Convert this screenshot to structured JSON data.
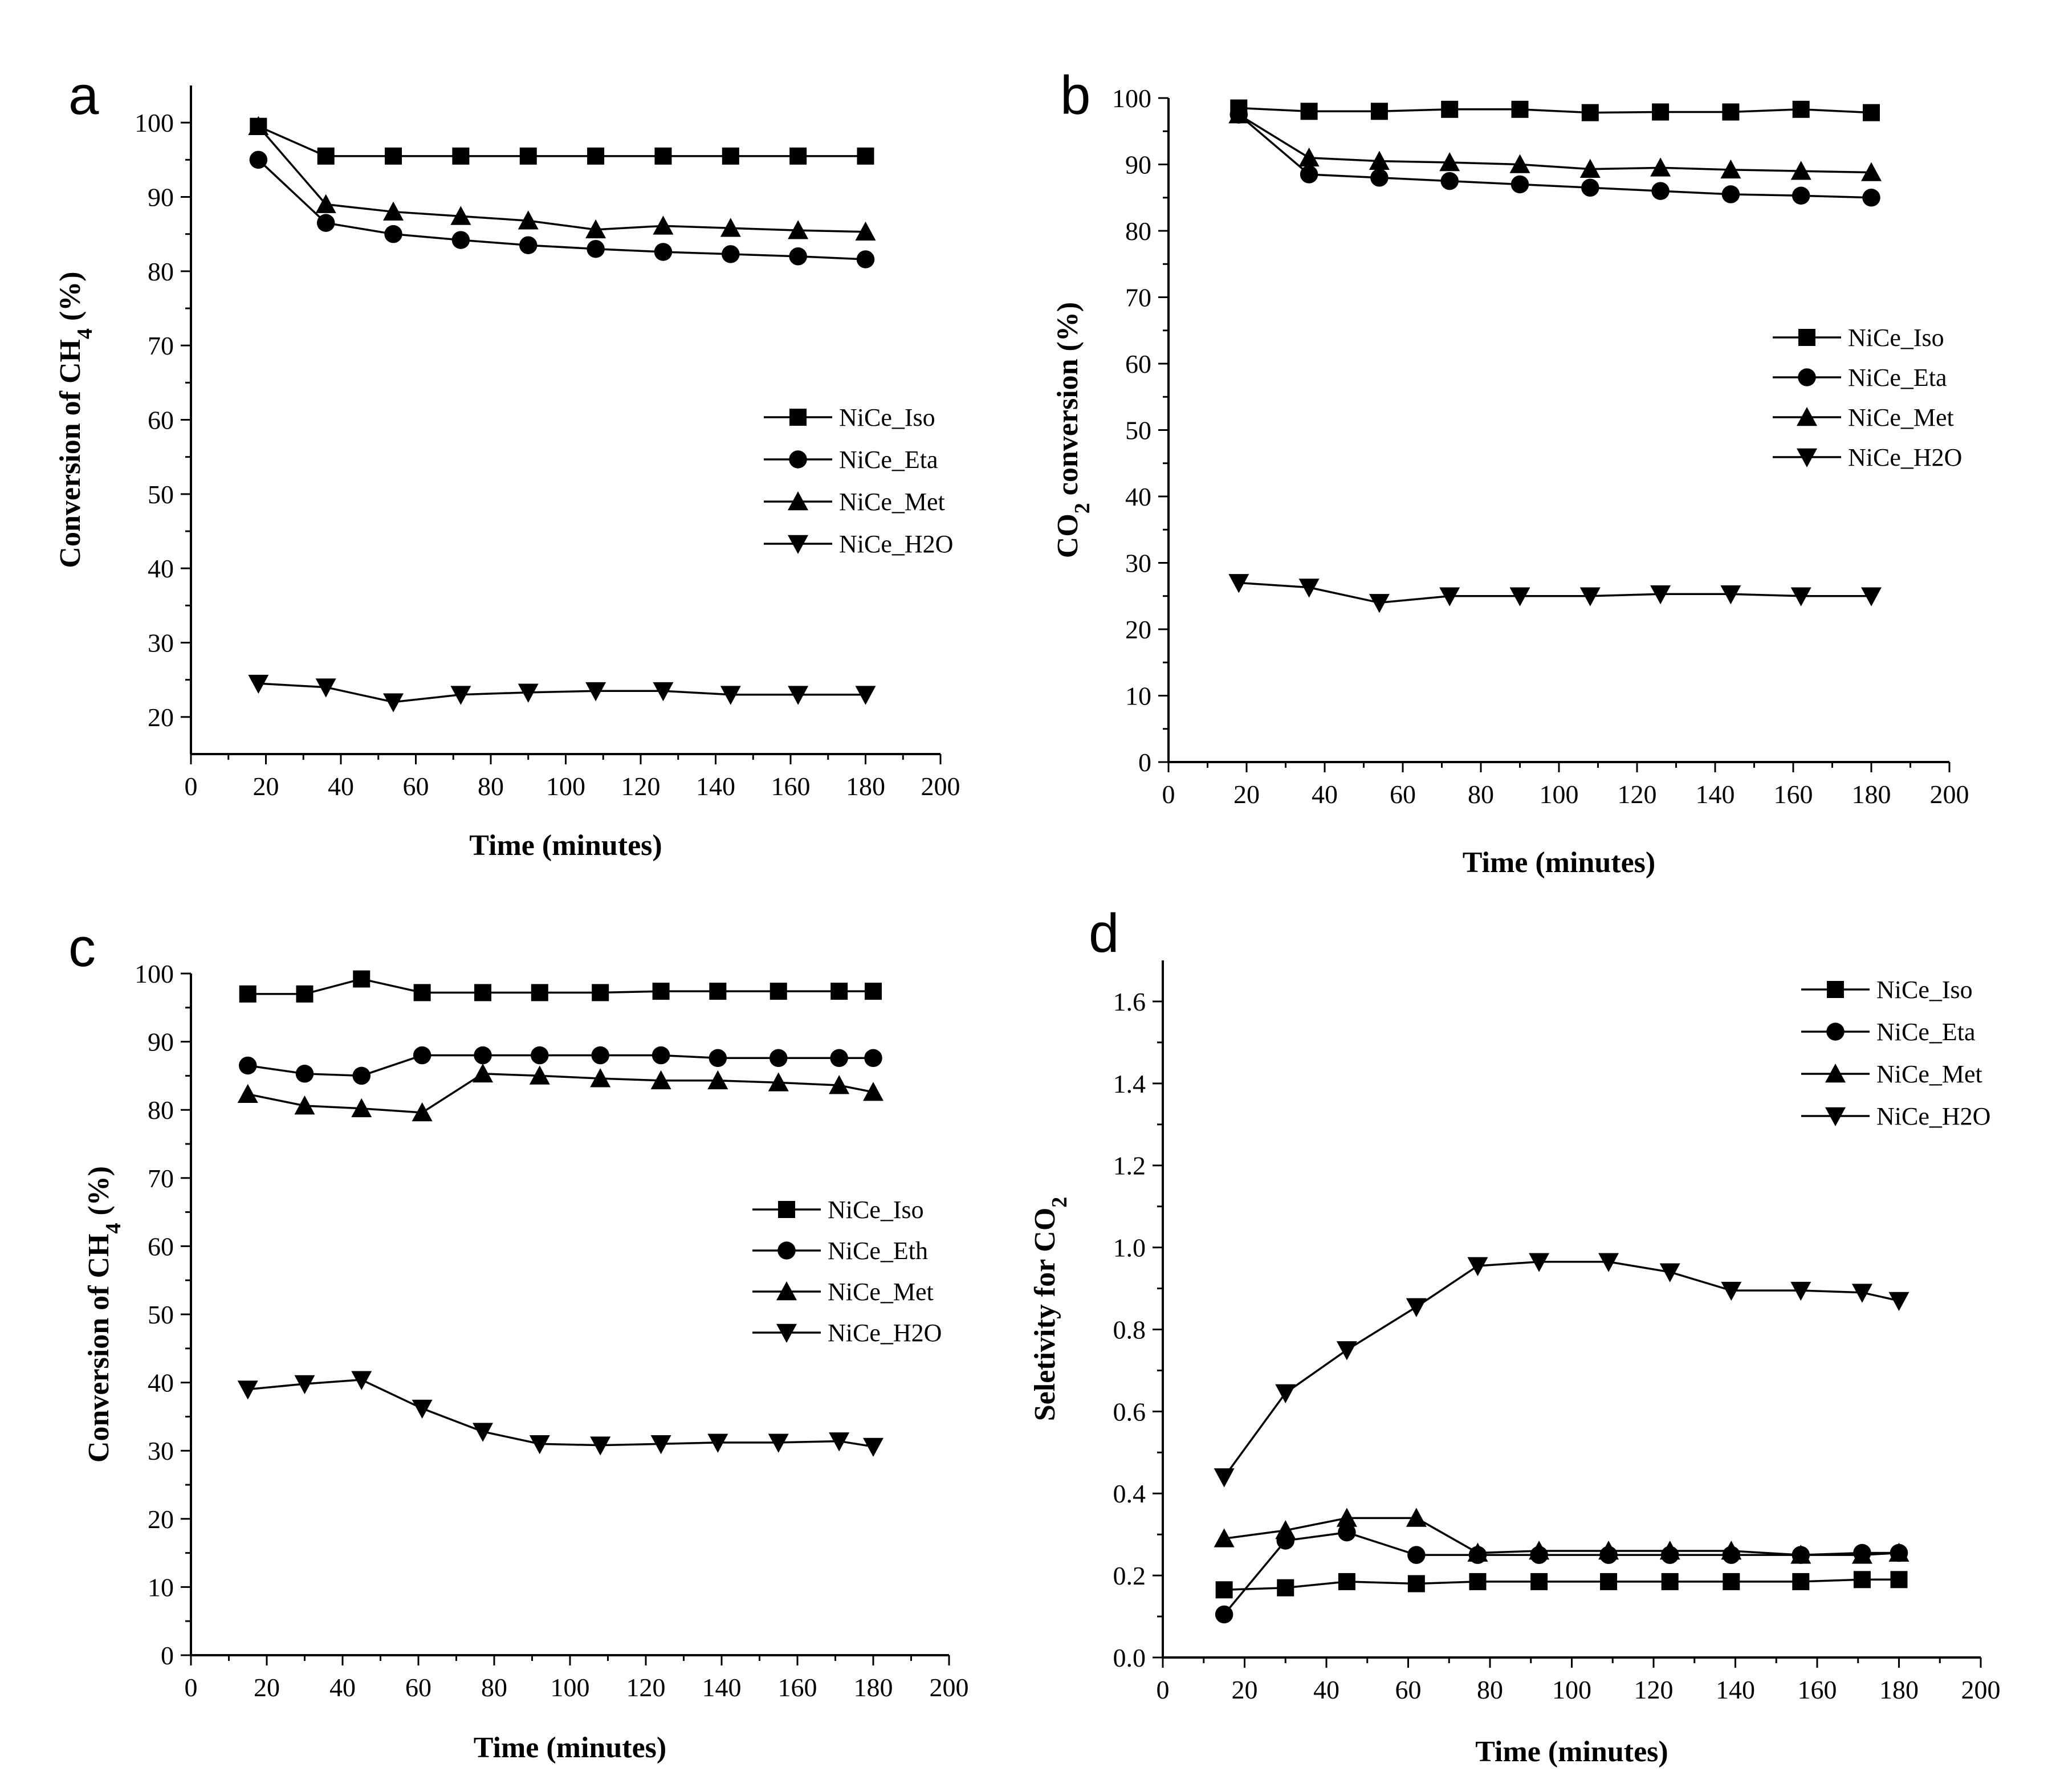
{
  "chart_data": [
    {
      "panel": "a",
      "type": "line",
      "xlabel": "Time (minutes)",
      "ylabel": "Conversion of CH",
      "ylabel_sub": "4",
      "ylabel_suffix": " (%)",
      "xlim": [
        0,
        200
      ],
      "ylim": [
        15,
        105
      ],
      "xticks": [
        0,
        20,
        40,
        60,
        80,
        100,
        120,
        140,
        160,
        180,
        200
      ],
      "yticks": [
        20,
        30,
        40,
        50,
        60,
        70,
        80,
        90,
        100
      ],
      "legend_position": "center-right",
      "x": [
        18,
        36,
        54,
        72,
        90,
        108,
        126,
        144,
        162,
        180
      ],
      "series": [
        {
          "name": "NiCe_Iso",
          "marker": "square",
          "values": [
            99.5,
            95.5,
            95.5,
            95.5,
            95.5,
            95.5,
            95.5,
            95.5,
            95.5,
            95.5
          ]
        },
        {
          "name": "NiCe_Eta",
          "marker": "circle",
          "values": [
            95,
            86.5,
            85,
            84.2,
            83.5,
            83,
            82.6,
            82.3,
            82,
            81.6
          ]
        },
        {
          "name": "NiCe_Met",
          "marker": "triangle-up",
          "values": [
            99.5,
            89,
            88,
            87.4,
            86.8,
            85.6,
            86.1,
            85.8,
            85.5,
            85.3
          ]
        },
        {
          "name": "NiCe_H2O",
          "marker": "triangle-down",
          "values": [
            24.5,
            24,
            22,
            23,
            23.3,
            23.5,
            23.5,
            23,
            23,
            23
          ]
        }
      ]
    },
    {
      "panel": "b",
      "type": "line",
      "xlabel": "Time (minutes)",
      "ylabel": "CO",
      "ylabel_sub": "2",
      "ylabel_suffix": " conversion (%)",
      "xlim": [
        0,
        200
      ],
      "ylim": [
        0,
        100
      ],
      "xticks": [
        0,
        20,
        40,
        60,
        80,
        100,
        120,
        140,
        160,
        180,
        200
      ],
      "yticks": [
        0,
        10,
        20,
        30,
        40,
        50,
        60,
        70,
        80,
        90,
        100
      ],
      "legend_position": "center-right",
      "x": [
        18,
        36,
        54,
        72,
        90,
        108,
        126,
        144,
        162,
        180
      ],
      "series": [
        {
          "name": "NiCe_Iso",
          "marker": "square",
          "values": [
            98.5,
            98,
            98,
            98.3,
            98.3,
            97.8,
            97.9,
            97.9,
            98.3,
            97.8
          ]
        },
        {
          "name": "NiCe_Eta",
          "marker": "circle",
          "values": [
            97.5,
            88.5,
            88,
            87.5,
            87,
            86.5,
            86,
            85.5,
            85.3,
            85
          ]
        },
        {
          "name": "NiCe_Met",
          "marker": "triangle-up",
          "values": [
            97.5,
            91,
            90.5,
            90.3,
            90,
            89.3,
            89.5,
            89.2,
            89,
            88.8
          ]
        },
        {
          "name": "NiCe_H2O",
          "marker": "triangle-down",
          "values": [
            27,
            26.3,
            24,
            25,
            25,
            25,
            25.3,
            25.3,
            25,
            25
          ]
        }
      ]
    },
    {
      "panel": "c",
      "type": "line",
      "xlabel": "Time (minutes)",
      "ylabel": "Conversion of  CH",
      "ylabel_sub": "4",
      "ylabel_suffix": " (%)",
      "xlim": [
        0,
        200
      ],
      "ylim": [
        0,
        100
      ],
      "xticks": [
        0,
        20,
        40,
        60,
        80,
        100,
        120,
        140,
        160,
        180,
        200
      ],
      "yticks": [
        0,
        10,
        20,
        30,
        40,
        50,
        60,
        70,
        80,
        90,
        100
      ],
      "legend_position": "center-right",
      "x": [
        15,
        30,
        45,
        61,
        77,
        92,
        108,
        124,
        139,
        155,
        171,
        180
      ],
      "series": [
        {
          "name": "NiCe_Iso",
          "marker": "square",
          "values": [
            97,
            97,
            99.2,
            97.2,
            97.2,
            97.2,
            97.2,
            97.4,
            97.4,
            97.4,
            97.4,
            97.4
          ]
        },
        {
          "name": "NiCe_Eth",
          "marker": "circle",
          "values": [
            86.5,
            85.3,
            85,
            88,
            88,
            88,
            88,
            88,
            87.6,
            87.6,
            87.6,
            87.6
          ]
        },
        {
          "name": "NiCe_Met",
          "marker": "triangle-up",
          "values": [
            82.3,
            80.6,
            80.2,
            79.6,
            85.3,
            85,
            84.6,
            84.3,
            84.3,
            84,
            83.6,
            82.6
          ]
        },
        {
          "name": "NiCe_H2O",
          "marker": "triangle-down",
          "values": [
            39,
            39.8,
            40.4,
            36.2,
            32.8,
            31,
            30.8,
            31,
            31.2,
            31.2,
            31.4,
            30.6
          ]
        }
      ]
    },
    {
      "panel": "d",
      "type": "line",
      "xlabel": "Time (minutes)",
      "ylabel": "Seletivity for CO",
      "ylabel_sub": "2",
      "ylabel_suffix": "",
      "xlim": [
        0,
        200
      ],
      "ylim": [
        0,
        1.7
      ],
      "xticks": [
        0,
        20,
        40,
        60,
        80,
        100,
        120,
        140,
        160,
        180,
        200
      ],
      "yticks": [
        0.0,
        0.2,
        0.4,
        0.6,
        0.8,
        1.0,
        1.2,
        1.4,
        1.6
      ],
      "ytick_labels": [
        "0.0",
        "0.2",
        "0.4",
        "0.6",
        "0.8",
        "1.0",
        "1.2",
        "1.4",
        "1.6"
      ],
      "legend_position": "top-right",
      "x": [
        15,
        30,
        45,
        62,
        77,
        92,
        109,
        124,
        139,
        156,
        171,
        180
      ],
      "series": [
        {
          "name": "NiCe_Iso",
          "marker": "square",
          "values": [
            0.165,
            0.17,
            0.185,
            0.18,
            0.185,
            0.185,
            0.185,
            0.185,
            0.185,
            0.185,
            0.19,
            0.19
          ]
        },
        {
          "name": "NiCe_Eta",
          "marker": "circle",
          "values": [
            0.105,
            0.285,
            0.305,
            0.25,
            0.25,
            0.25,
            0.25,
            0.25,
            0.25,
            0.25,
            0.255,
            0.255
          ]
        },
        {
          "name": "NiCe_Met",
          "marker": "triangle-up",
          "values": [
            0.29,
            0.31,
            0.34,
            0.34,
            0.255,
            0.26,
            0.26,
            0.26,
            0.26,
            0.25,
            0.25,
            0.255
          ]
        },
        {
          "name": "NiCe_H2O",
          "marker": "triangle-down",
          "values": [
            0.44,
            0.645,
            0.75,
            0.855,
            0.955,
            0.965,
            0.965,
            0.94,
            0.895,
            0.895,
            0.89,
            0.87
          ]
        }
      ]
    }
  ]
}
